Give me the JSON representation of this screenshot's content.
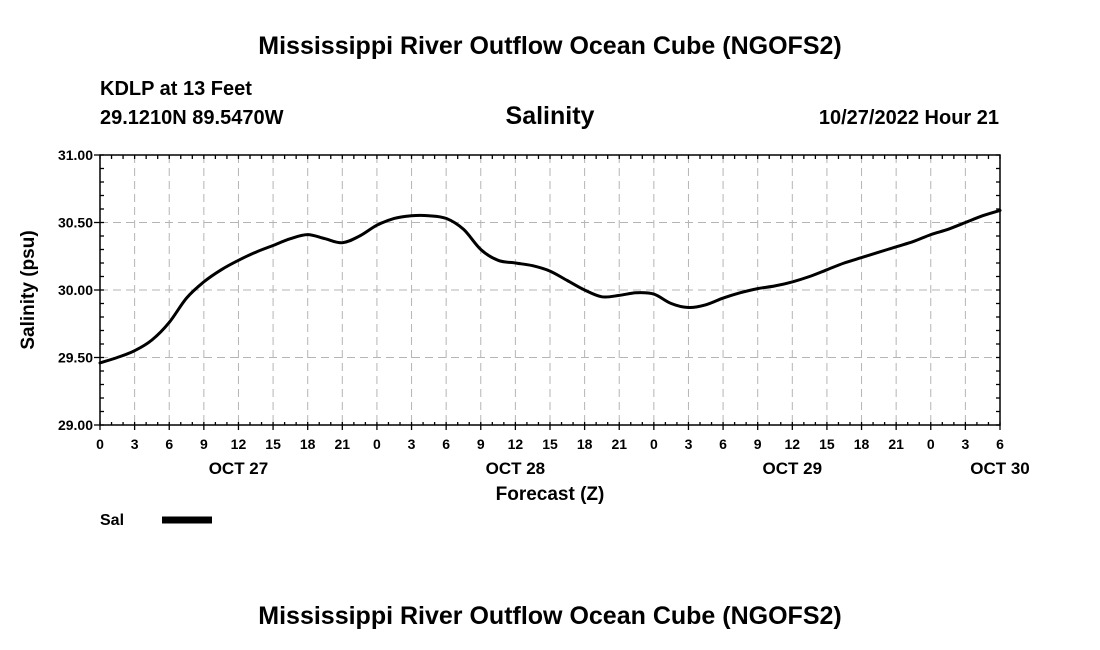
{
  "page": {
    "title": "Mississippi River Outflow Ocean Cube (NGOFS2)",
    "footer_title": "Mississippi River Outflow Ocean Cube (NGOFS2)",
    "station": "KDLP at 13 Feet",
    "location": "29.1210N  89.5470W",
    "run_time": "10/27/2022 Hour 21"
  },
  "chart_data": {
    "type": "line",
    "title": "Salinity",
    "xlabel": "Forecast (Z)",
    "ylabel": "Salinity (psu)",
    "xlim": [
      0,
      78
    ],
    "ylim": [
      29.0,
      31.0
    ],
    "grid": true,
    "legend_position": "bottom-left",
    "x_tick_labels": [
      "0",
      "3",
      "6",
      "9",
      "12",
      "15",
      "18",
      "21",
      "0",
      "3",
      "6",
      "9",
      "12",
      "15",
      "18",
      "21",
      "0",
      "3",
      "6",
      "9",
      "12",
      "15",
      "18",
      "21",
      "0",
      "3",
      "6"
    ],
    "day_labels": [
      {
        "label": "OCT 27",
        "hour": 12
      },
      {
        "label": "OCT 28",
        "hour": 36
      },
      {
        "label": "OCT 29",
        "hour": 60
      },
      {
        "label": "OCT 30",
        "hour": 78
      }
    ],
    "y_ticks": [
      {
        "value": 29.0,
        "label": "29.00"
      },
      {
        "value": 29.5,
        "label": "29.50"
      },
      {
        "value": 30.0,
        "label": "30.00"
      },
      {
        "value": 30.5,
        "label": "30.50"
      },
      {
        "value": 31.0,
        "label": "31.00"
      }
    ],
    "series": [
      {
        "name": "Sal",
        "color": "#000000",
        "x": [
          0,
          1.5,
          3,
          4.5,
          6,
          7.5,
          9,
          10.5,
          12,
          13.5,
          15,
          16.5,
          18,
          19.5,
          21,
          22.5,
          24,
          25.5,
          27,
          28.5,
          30,
          31.5,
          33,
          34.5,
          36,
          37.5,
          39,
          40.5,
          42,
          43.5,
          45,
          46.5,
          48,
          49.5,
          51,
          52.5,
          54,
          55.5,
          57,
          58.5,
          60,
          61.5,
          63,
          64.5,
          66,
          67.5,
          69,
          70.5,
          72,
          73.5,
          75,
          76.5,
          78
        ],
        "y": [
          29.46,
          29.5,
          29.55,
          29.63,
          29.76,
          29.94,
          30.06,
          30.15,
          30.22,
          30.28,
          30.33,
          30.38,
          30.41,
          30.38,
          30.35,
          30.4,
          30.48,
          30.53,
          30.55,
          30.55,
          30.53,
          30.45,
          30.3,
          30.22,
          30.2,
          30.18,
          30.14,
          30.07,
          30.0,
          29.95,
          29.96,
          29.98,
          29.97,
          29.9,
          29.87,
          29.89,
          29.94,
          29.98,
          30.01,
          30.03,
          30.06,
          30.1,
          30.15,
          30.2,
          30.24,
          30.28,
          30.32,
          30.36,
          30.41,
          30.45,
          30.5,
          30.55,
          30.59
        ]
      }
    ]
  }
}
